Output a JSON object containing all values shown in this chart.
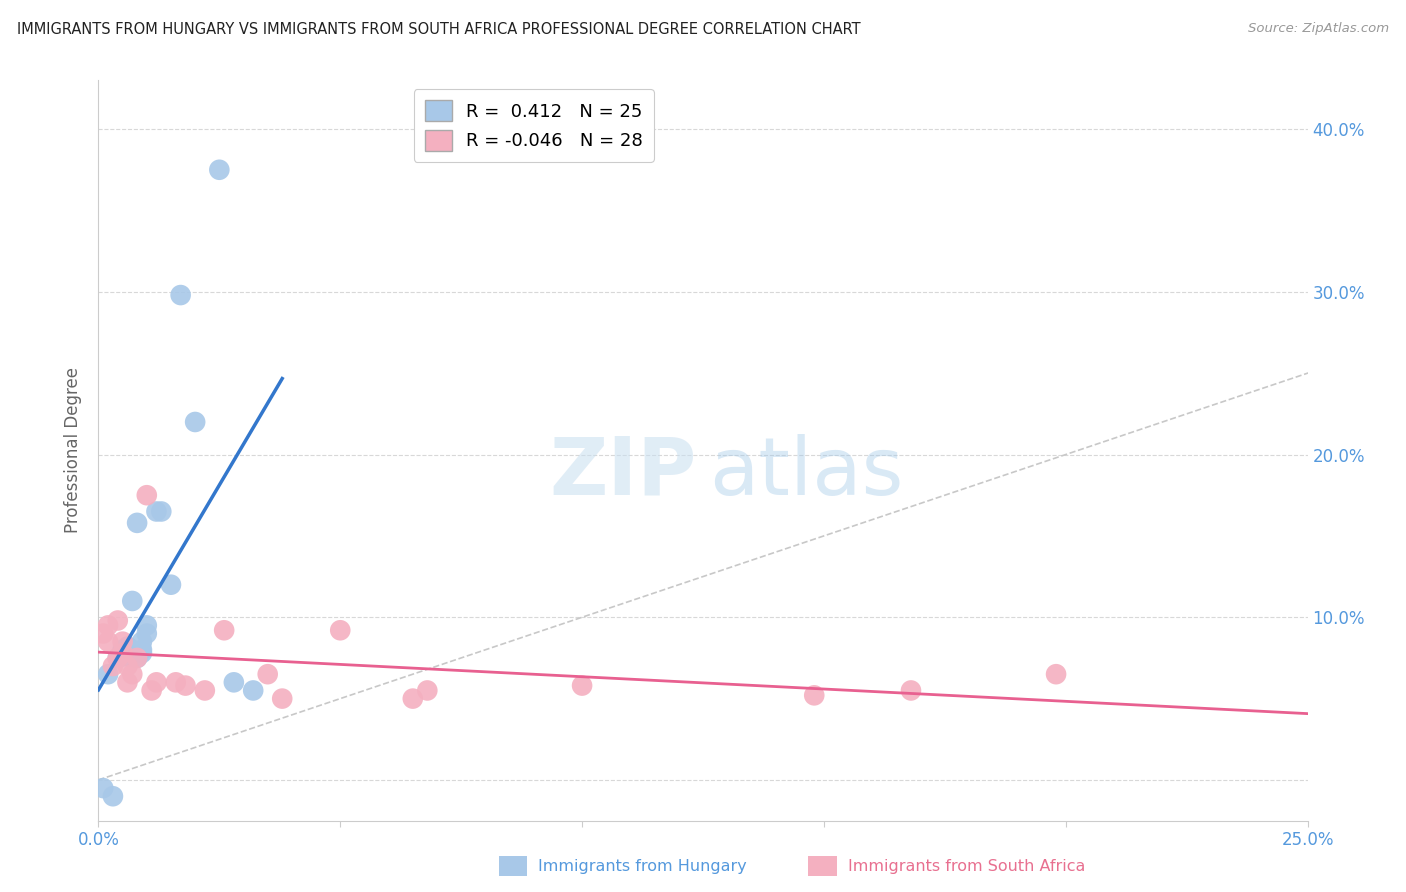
{
  "title": "IMMIGRANTS FROM HUNGARY VS IMMIGRANTS FROM SOUTH AFRICA PROFESSIONAL DEGREE CORRELATION CHART",
  "source": "Source: ZipAtlas.com",
  "ylabel": "Professional Degree",
  "xlim": [
    0.0,
    0.25
  ],
  "ylim": [
    -0.025,
    0.43
  ],
  "background_color": "#ffffff",
  "hungary_color": "#a8c8e8",
  "sa_color": "#f4b0c0",
  "hungary_line_color": "#3377cc",
  "sa_line_color": "#e86090",
  "diag_color": "#c8c8c8",
  "grid_color": "#d8d8d8",
  "R_hungary": 0.412,
  "N_hungary": 25,
  "R_sa": -0.046,
  "N_sa": 28,
  "legend_label_hungary": "Immigrants from Hungary",
  "legend_label_sa": "Immigrants from South Africa",
  "watermark_zip": "ZIP",
  "watermark_atlas": "atlas",
  "tick_color": "#5599dd",
  "hungary_x": [
    0.001,
    0.002,
    0.003,
    0.004,
    0.005,
    0.005,
    0.006,
    0.006,
    0.007,
    0.007,
    0.008,
    0.008,
    0.009,
    0.009,
    0.009,
    0.01,
    0.01,
    0.012,
    0.013,
    0.015,
    0.017,
    0.02,
    0.025,
    0.028,
    0.032
  ],
  "hungary_y": [
    -0.005,
    0.065,
    -0.01,
    0.075,
    0.076,
    0.08,
    0.082,
    0.076,
    0.08,
    0.11,
    0.158,
    0.075,
    0.078,
    0.08,
    0.085,
    0.09,
    0.095,
    0.165,
    0.165,
    0.12,
    0.298,
    0.22,
    0.375,
    0.06,
    0.055
  ],
  "sa_x": [
    0.001,
    0.002,
    0.002,
    0.003,
    0.004,
    0.004,
    0.005,
    0.005,
    0.006,
    0.006,
    0.007,
    0.008,
    0.01,
    0.011,
    0.012,
    0.016,
    0.018,
    0.022,
    0.026,
    0.035,
    0.038,
    0.05,
    0.065,
    0.068,
    0.1,
    0.148,
    0.168,
    0.198
  ],
  "sa_y": [
    0.09,
    0.085,
    0.095,
    0.07,
    0.098,
    0.075,
    0.078,
    0.085,
    0.06,
    0.07,
    0.065,
    0.075,
    0.175,
    0.055,
    0.06,
    0.06,
    0.058,
    0.055,
    0.092,
    0.065,
    0.05,
    0.092,
    0.05,
    0.055,
    0.058,
    0.052,
    0.055,
    0.065
  ]
}
